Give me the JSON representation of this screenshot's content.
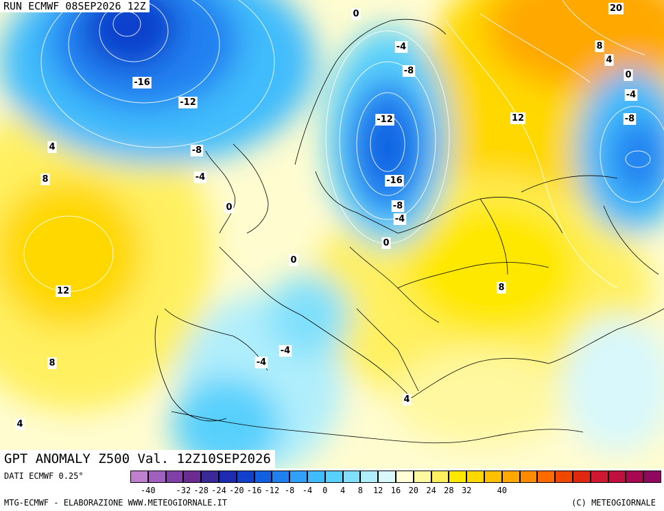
{
  "header": {
    "run_title": "RUN ECMWF 08SEP2026 12Z",
    "anomaly_title": "GPT ANOMALY Z500 Val. 12Z10SEP2026"
  },
  "footer": {
    "dati": "DATI ECMWF 0.25°",
    "credit_left": "MTG-ECMWF - ELABORAZIONE WWW.METEOGIORNALE.IT",
    "credit_right": "(C) METEOGIORNALE"
  },
  "colorbar": {
    "colors": [
      "#c080d0",
      "#a060c0",
      "#8040a8",
      "#6a2c90",
      "#3a2a98",
      "#1e2ab0",
      "#1040cc",
      "#1060e0",
      "#2080f0",
      "#30a0f8",
      "#40bcfc",
      "#58d0fc",
      "#80e0fc",
      "#b0eefc",
      "#d8f8fc",
      "#fffcd8",
      "#fff8a0",
      "#fff060",
      "#ffe800",
      "#ffd800",
      "#ffc000",
      "#ffa800",
      "#ff8c00",
      "#ff6a00",
      "#f04800",
      "#e02810",
      "#d01830",
      "#c01040",
      "#a80850",
      "#900860"
    ],
    "ticks": [
      "-40",
      "-32",
      "-28",
      "-24",
      "-20",
      "-16",
      "-12",
      "-8",
      "-4",
      "0",
      "4",
      "8",
      "12",
      "16",
      "20",
      "24",
      "28",
      "32",
      "40"
    ]
  },
  "contour_labels": [
    {
      "text": "0"
    },
    {
      "text": "20"
    },
    {
      "text": "-4"
    },
    {
      "text": "8"
    },
    {
      "text": "4"
    },
    {
      "text": "-8"
    },
    {
      "text": "-16"
    },
    {
      "text": "0"
    },
    {
      "text": "-4"
    },
    {
      "text": "-12"
    },
    {
      "text": "12"
    },
    {
      "text": "-8"
    },
    {
      "text": "-12"
    },
    {
      "text": "4"
    },
    {
      "text": "-8"
    },
    {
      "text": "-4"
    },
    {
      "text": "-16"
    },
    {
      "text": "8"
    },
    {
      "text": "0"
    },
    {
      "text": "-8"
    },
    {
      "text": "-4"
    },
    {
      "text": "0"
    },
    {
      "text": "0"
    },
    {
      "text": "12"
    },
    {
      "text": "8"
    },
    {
      "text": "-4"
    },
    {
      "text": "-4"
    },
    {
      "text": "8"
    },
    {
      "text": "4"
    },
    {
      "text": "4"
    }
  ]
}
